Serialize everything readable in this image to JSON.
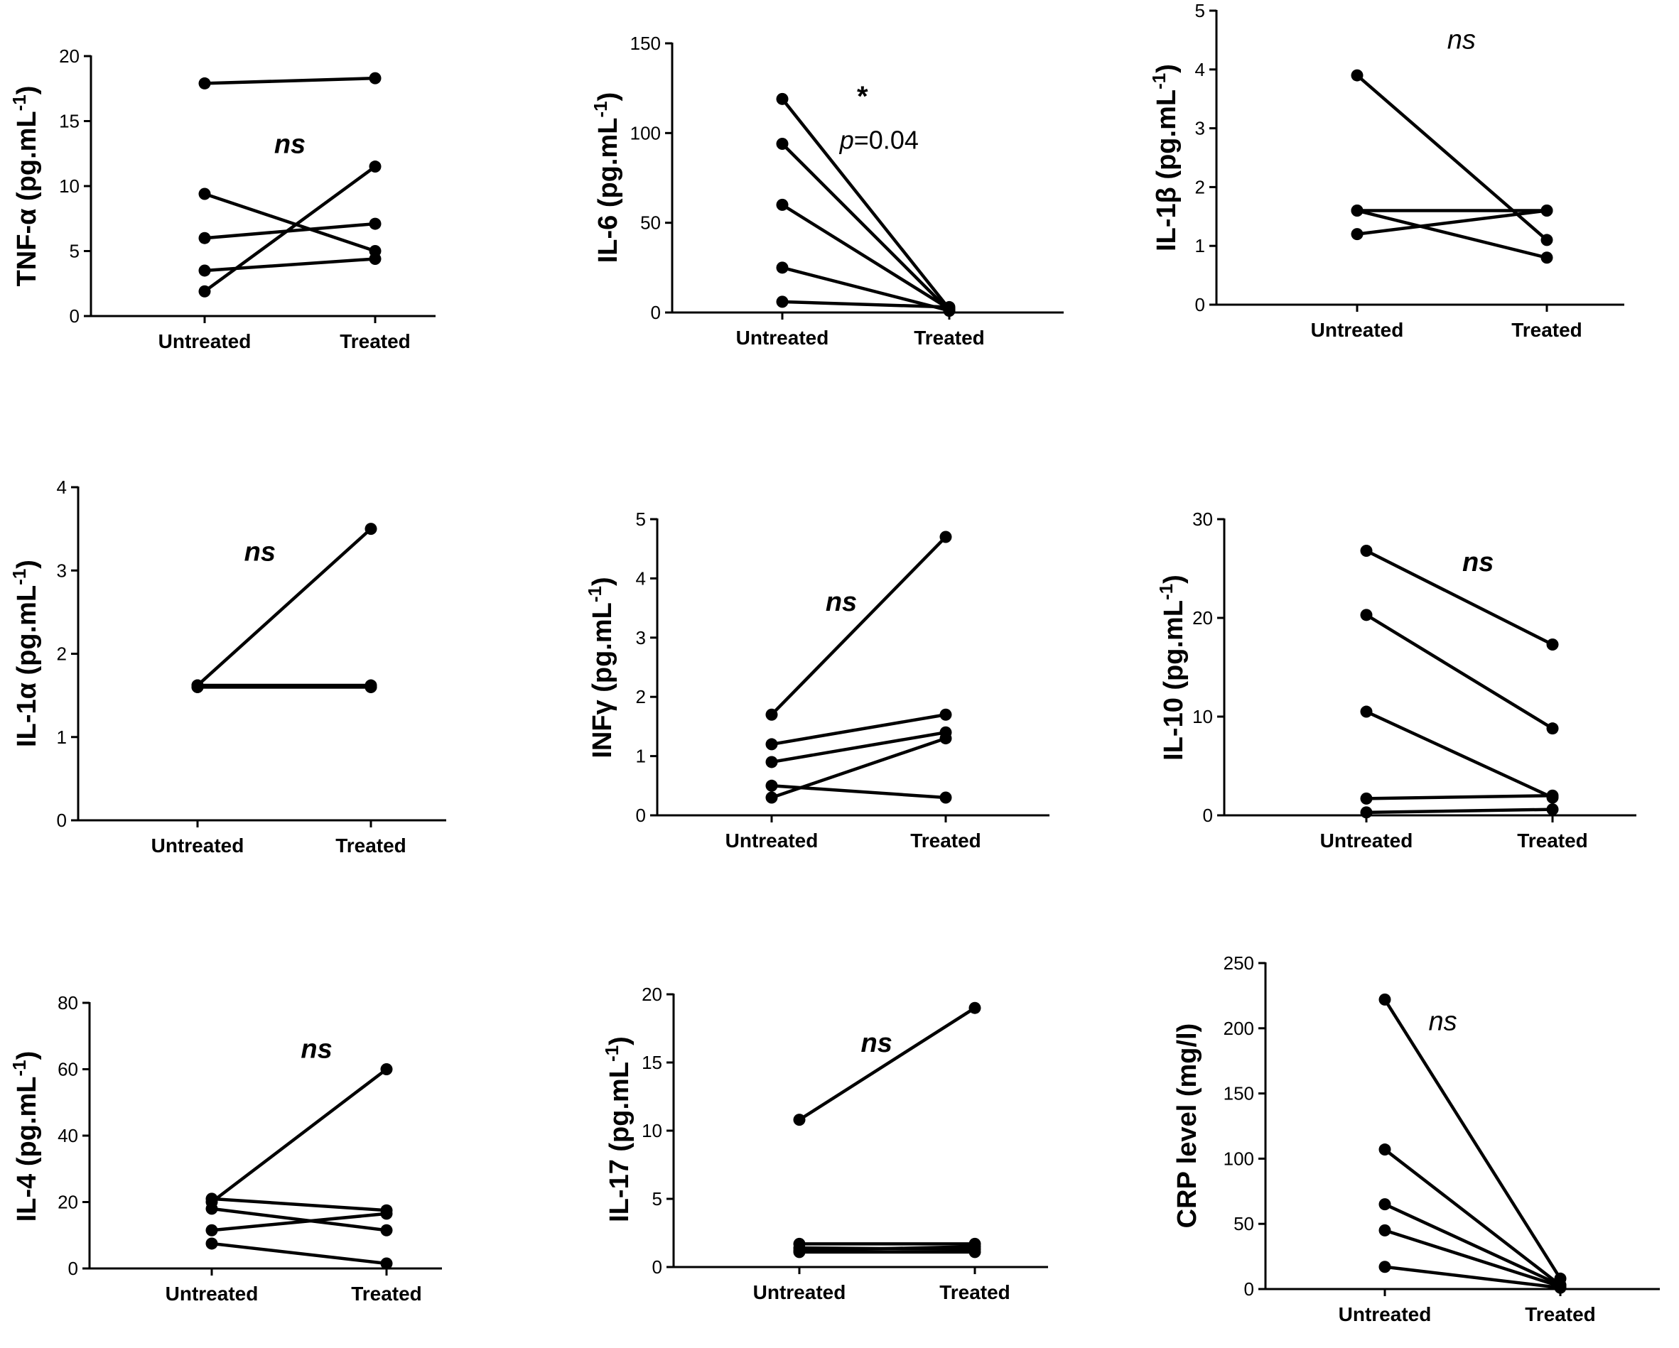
{
  "chart_data": [
    {
      "type": "line",
      "ylabel": "TNF-α (pg.mL",
      "ylabel_sup": "-1",
      "ylabel_close": ")",
      "categories": [
        "Untreated",
        "Treated"
      ],
      "ylim": [
        0,
        20
      ],
      "yticks": [
        0,
        5,
        10,
        15,
        20
      ],
      "series": [
        [
          17.9,
          18.3
        ],
        [
          9.4,
          5.0
        ],
        [
          6.0,
          7.1
        ],
        [
          3.5,
          4.4
        ],
        [
          1.9,
          11.5
        ]
      ],
      "annotations": [
        {
          "text": "ns",
          "style": "bold-italic",
          "x": 0.5,
          "y": 13.2
        }
      ]
    },
    {
      "type": "line",
      "ylabel": "IL-6 (pg.mL",
      "ylabel_sup": "-1",
      "ylabel_close": ")",
      "categories": [
        "Untreated",
        "Treated"
      ],
      "ylim": [
        0,
        150
      ],
      "yticks": [
        0,
        50,
        100,
        150
      ],
      "series": [
        [
          119,
          2
        ],
        [
          94,
          1
        ],
        [
          60,
          2
        ],
        [
          25,
          1
        ],
        [
          6,
          3
        ]
      ],
      "annotations": [
        {
          "text": "*",
          "style": "star",
          "x": 0.48,
          "y": 123
        },
        {
          "text": "p",
          "style": "italic",
          "x": 0.58,
          "y": 96,
          "suffix": "=0.04"
        }
      ]
    },
    {
      "type": "line",
      "ylabel": "IL-1β (pg.mL",
      "ylabel_sup": "-1",
      "ylabel_close": ")",
      "categories": [
        "Untreated",
        "Treated"
      ],
      "ylim": [
        0,
        5
      ],
      "yticks": [
        0,
        1,
        2,
        3,
        4,
        5
      ],
      "series": [
        [
          3.9,
          1.1
        ],
        [
          1.6,
          1.6
        ],
        [
          1.6,
          0.8
        ],
        [
          1.2,
          1.6
        ]
      ],
      "annotations": [
        {
          "text": "ns",
          "style": "italic",
          "x": 0.55,
          "y": 4.5
        }
      ]
    },
    {
      "type": "line",
      "ylabel": "IL-1α (pg.mL",
      "ylabel_sup": "-1",
      "ylabel_close": ")",
      "categories": [
        "Untreated",
        "Treated"
      ],
      "ylim": [
        0,
        4
      ],
      "yticks": [
        0,
        1,
        2,
        3,
        4
      ],
      "series": [
        [
          1.62,
          3.5
        ],
        [
          1.62,
          1.62
        ],
        [
          1.6,
          1.6
        ],
        [
          1.6,
          1.6
        ]
      ],
      "annotations": [
        {
          "text": "ns",
          "style": "bold-italic",
          "x": 0.36,
          "y": 3.22
        }
      ]
    },
    {
      "type": "line",
      "ylabel": "INFγ (pg.mL",
      "ylabel_sup": "-1",
      "ylabel_close": ")",
      "categories": [
        "Untreated",
        "Treated"
      ],
      "ylim": [
        0,
        5
      ],
      "yticks": [
        0,
        1,
        2,
        3,
        4,
        5
      ],
      "series": [
        [
          1.7,
          4.7
        ],
        [
          1.2,
          1.7
        ],
        [
          0.9,
          1.4
        ],
        [
          0.5,
          0.3
        ],
        [
          0.3,
          1.3
        ]
      ],
      "annotations": [
        {
          "text": "ns",
          "style": "bold-italic",
          "x": 0.4,
          "y": 3.6
        }
      ]
    },
    {
      "type": "line",
      "ylabel": "IL-10 (pg.mL",
      "ylabel_sup": "-1",
      "ylabel_close": ")",
      "categories": [
        "Untreated",
        "Treated"
      ],
      "ylim": [
        0,
        30
      ],
      "yticks": [
        0,
        10,
        20,
        30
      ],
      "series": [
        [
          26.8,
          17.3
        ],
        [
          20.3,
          8.8
        ],
        [
          10.5,
          1.8
        ],
        [
          1.7,
          2.0
        ],
        [
          0.3,
          0.6
        ]
      ],
      "annotations": [
        {
          "text": "ns",
          "style": "bold-italic",
          "x": 0.6,
          "y": 25.6
        }
      ]
    },
    {
      "type": "line",
      "ylabel": "IL-4 (pg.mL",
      "ylabel_sup": "-1",
      "ylabel_close": ")",
      "categories": [
        "Untreated",
        "Treated"
      ],
      "ylim": [
        0,
        80
      ],
      "yticks": [
        0,
        20,
        40,
        60,
        80
      ],
      "series": [
        [
          20,
          60
        ],
        [
          21,
          17.5
        ],
        [
          18,
          11.5
        ],
        [
          11.5,
          16.5
        ],
        [
          7.5,
          1.5
        ]
      ],
      "annotations": [
        {
          "text": "ns",
          "style": "bold-italic",
          "x": 0.6,
          "y": 66
        }
      ]
    },
    {
      "type": "line",
      "ylabel": "IL-17 (pg.mL",
      "ylabel_sup": "-1",
      "ylabel_close": ")",
      "categories": [
        "Untreated",
        "Treated"
      ],
      "ylim": [
        0,
        20
      ],
      "yticks": [
        0,
        5,
        10,
        15,
        20
      ],
      "series": [
        [
          10.8,
          19.0
        ],
        [
          1.7,
          1.7
        ],
        [
          1.4,
          1.3
        ],
        [
          1.2,
          1.5
        ],
        [
          1.1,
          1.1
        ]
      ],
      "annotations": [
        {
          "text": "ns",
          "style": "bold-italic",
          "x": 0.44,
          "y": 16.4
        }
      ]
    },
    {
      "type": "line",
      "ylabel": "CRP level (mg/l)",
      "ylabel_sup": "",
      "ylabel_close": "",
      "categories": [
        "Untreated",
        "Treated"
      ],
      "ylim": [
        0,
        250
      ],
      "yticks": [
        0,
        50,
        100,
        150,
        200,
        250
      ],
      "series": [
        [
          222,
          8
        ],
        [
          107,
          3
        ],
        [
          65,
          3
        ],
        [
          45,
          2
        ],
        [
          17,
          1
        ]
      ],
      "annotations": [
        {
          "text": "ns",
          "style": "italic",
          "x": 0.33,
          "y": 205
        }
      ]
    }
  ]
}
